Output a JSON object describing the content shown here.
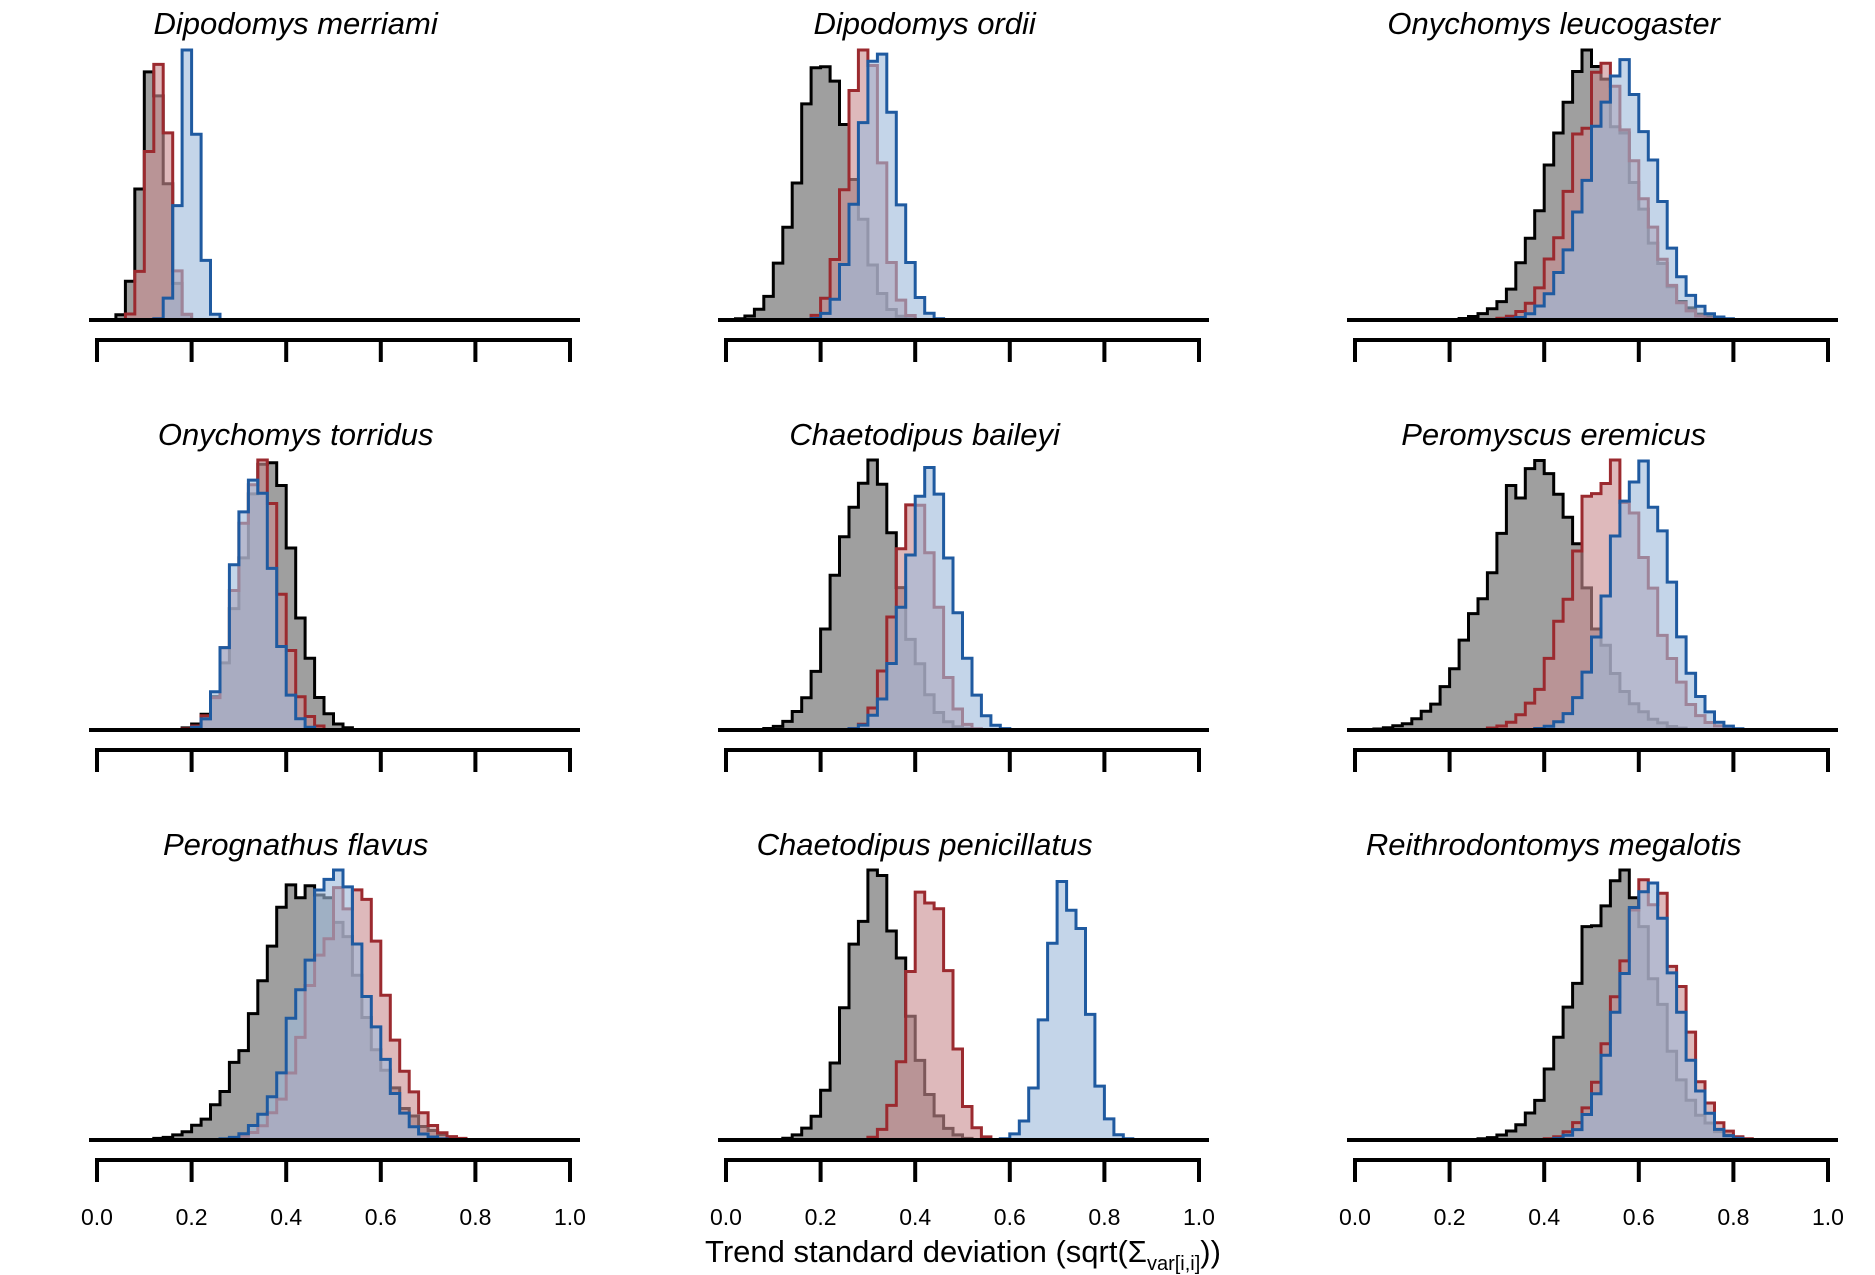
{
  "chart_data": {
    "type": "histogram",
    "xlabel": "Trend standard deviation (sqrt(Σvar[i,i]))",
    "xlabel_parts": {
      "main": "Trend standard deviation (sqrt(",
      "symbol": "Σ",
      "subscript": "var[i,i]",
      "close": "))"
    },
    "xlim": [
      0,
      1
    ],
    "x_ticks": [
      0.0,
      0.2,
      0.4,
      0.6,
      0.8,
      1.0
    ],
    "x_tick_labels": [
      "0.0",
      "0.2",
      "0.4",
      "0.6",
      "0.8",
      "1.0"
    ],
    "tick_labels_shown_on_bottom_row_only": true,
    "y_axis_shown": false,
    "grid": false,
    "legend": "none",
    "series_colors": {
      "red": {
        "stroke": "#9b2a2f",
        "fill": "#c98e91"
      },
      "blue": {
        "stroke": "#1f5aa0",
        "fill": "#9fbcdc"
      },
      "black": {
        "stroke": "#000000",
        "fill": "#7f7f7f"
      }
    },
    "overlap_fill": "#5b5b6a",
    "panels": [
      {
        "title": "Dipodomys merriami",
        "distributions": {
          "red": {
            "mean": 0.13,
            "sd": 0.022
          },
          "blue": {
            "mean": 0.195,
            "sd": 0.02
          },
          "black": {
            "mean": 0.12,
            "sd": 0.025
          }
        }
      },
      {
        "title": "Dipodomys ordii",
        "distributions": {
          "red": {
            "mean": 0.29,
            "sd": 0.035
          },
          "blue": {
            "mean": 0.32,
            "sd": 0.04
          },
          "black": {
            "mean": 0.21,
            "sd": 0.055
          }
        }
      },
      {
        "title": "Onychomys leucogaster",
        "distributions": {
          "red": {
            "mean": 0.53,
            "sd": 0.07
          },
          "blue": {
            "mean": 0.56,
            "sd": 0.07
          },
          "black": {
            "mean": 0.5,
            "sd": 0.085
          }
        }
      },
      {
        "title": "Onychomys torridus",
        "distributions": {
          "red": {
            "mean": 0.34,
            "sd": 0.045
          },
          "blue": {
            "mean": 0.33,
            "sd": 0.04
          },
          "black": {
            "mean": 0.36,
            "sd": 0.055
          }
        }
      },
      {
        "title": "Chaetodipus baileyi",
        "distributions": {
          "red": {
            "mean": 0.4,
            "sd": 0.04
          },
          "blue": {
            "mean": 0.43,
            "sd": 0.05
          },
          "black": {
            "mean": 0.3,
            "sd": 0.065
          }
        }
      },
      {
        "title": "Peromyscus eremicus",
        "distributions": {
          "red": {
            "mean": 0.54,
            "sd": 0.08
          },
          "blue": {
            "mean": 0.6,
            "sd": 0.065
          },
          "black": {
            "mean": 0.38,
            "sd": 0.1
          }
        }
      },
      {
        "title": "Perognathus flavus",
        "distributions": {
          "red": {
            "mean": 0.53,
            "sd": 0.075
          },
          "blue": {
            "mean": 0.5,
            "sd": 0.07
          },
          "black": {
            "mean": 0.45,
            "sd": 0.1
          }
        }
      },
      {
        "title": "Chaetodipus penicillatus",
        "distributions": {
          "red": {
            "mean": 0.43,
            "sd": 0.04
          },
          "blue": {
            "mean": 0.72,
            "sd": 0.04
          },
          "black": {
            "mean": 0.32,
            "sd": 0.06
          }
        }
      },
      {
        "title": "Reithrodontomys megalotis",
        "distributions": {
          "red": {
            "mean": 0.62,
            "sd": 0.065
          },
          "blue": {
            "mean": 0.62,
            "sd": 0.06
          },
          "black": {
            "mean": 0.55,
            "sd": 0.085
          }
        }
      }
    ]
  }
}
